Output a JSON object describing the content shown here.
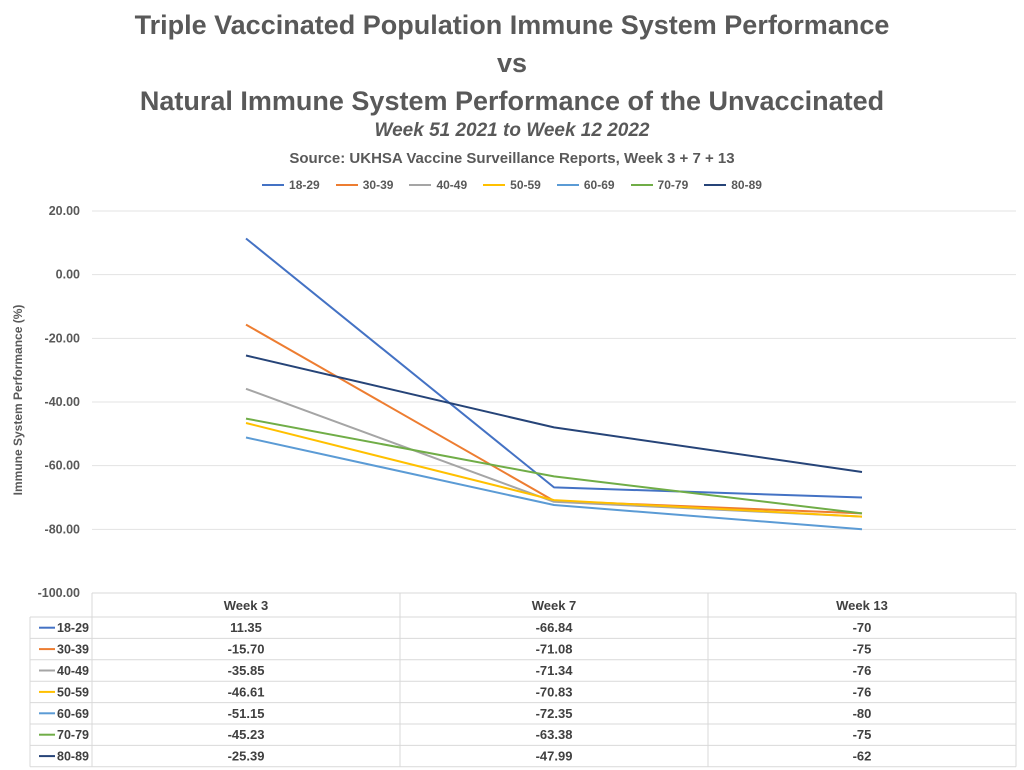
{
  "title": {
    "line1": "Triple Vaccinated Population Immune System Performance",
    "line2": "vs",
    "line3": "Natural Immune System Performance of the Unvaccinated",
    "subtitle": "Week 51 2021 to Week 12 2022",
    "source": "Source: UKHSA Vaccine Surveillance Reports, Week 3 + 7 + 13"
  },
  "chart_data": {
    "type": "line",
    "title": "Triple Vaccinated Population Immune System Performance vs Natural Immune System Performance of the Unvaccinated",
    "subtitle": "Week 51 2021 to Week 12 2022",
    "ylabel": "Immune System Performance (%)",
    "xlabel": "",
    "ylim": [
      -100,
      20
    ],
    "yticks": [
      "20.00",
      "0.00",
      "-20.00",
      "-40.00",
      "-60.00",
      "-80.00",
      "-100.00"
    ],
    "ytick_values": [
      20,
      0,
      -20,
      -40,
      -60,
      -80,
      -100
    ],
    "categories": [
      "Week 3",
      "Week 7",
      "Week 13"
    ],
    "legend_position": "top",
    "grid": true,
    "data_table": true,
    "series": [
      {
        "name": "18-29",
        "color": "#4472C4",
        "values": [
          11.35,
          -66.84,
          -70
        ],
        "display": [
          "11.35",
          "-66.84",
          "-70"
        ]
      },
      {
        "name": "30-39",
        "color": "#ED7D31",
        "values": [
          -15.7,
          -71.08,
          -75
        ],
        "display": [
          "-15.70",
          "-71.08",
          "-75"
        ]
      },
      {
        "name": "40-49",
        "color": "#A5A5A5",
        "values": [
          -35.85,
          -71.34,
          -76
        ],
        "display": [
          "-35.85",
          "-71.34",
          "-76"
        ]
      },
      {
        "name": "50-59",
        "color": "#FFC000",
        "values": [
          -46.61,
          -70.83,
          -76
        ],
        "display": [
          "-46.61",
          "-70.83",
          "-76"
        ]
      },
      {
        "name": "60-69",
        "color": "#5B9BD5",
        "values": [
          -51.15,
          -72.35,
          -80
        ],
        "display": [
          "-51.15",
          "-72.35",
          "-80"
        ]
      },
      {
        "name": "70-79",
        "color": "#70AD47",
        "values": [
          -45.23,
          -63.38,
          -75
        ],
        "display": [
          "-45.23",
          "-63.38",
          "-75"
        ]
      },
      {
        "name": "80-89",
        "color": "#264478",
        "values": [
          -25.39,
          -47.99,
          -62
        ],
        "display": [
          "-25.39",
          "-47.99",
          "-62"
        ]
      }
    ]
  }
}
